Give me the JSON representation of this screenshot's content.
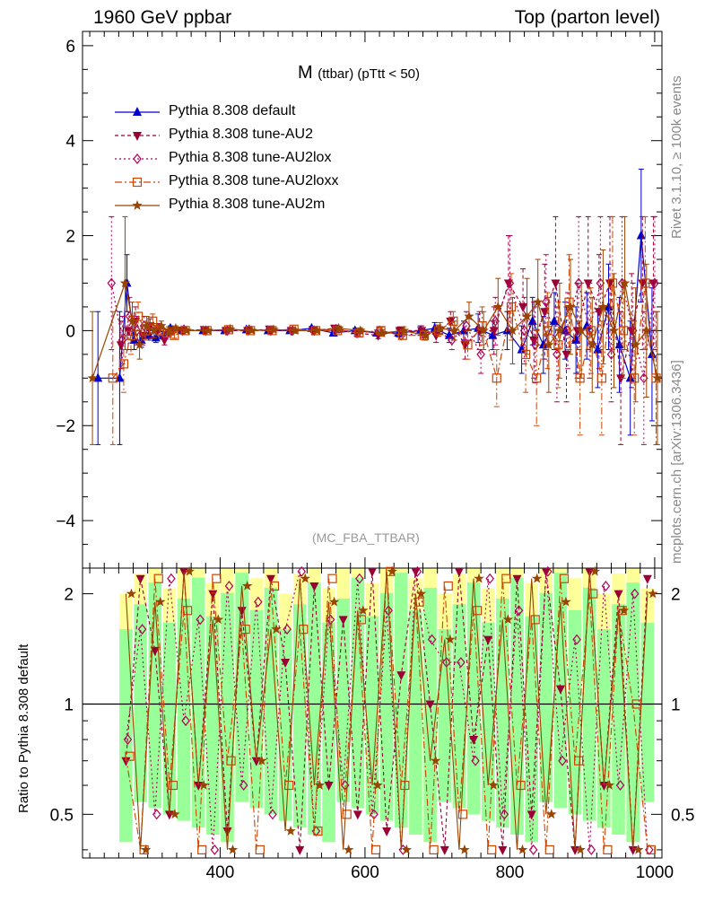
{
  "header": {
    "left": "1960 GeV ppbar",
    "right": "Top (parton level)"
  },
  "side_labels": {
    "rivet": "Rivet 3.1.10, ≥ 100k events",
    "source": "mcplots.cern.ch [arXiv:1306.3436]"
  },
  "plot_title": {
    "main": "M",
    "sub": "(ttbar) (pTtt < 50)"
  },
  "watermark": "(MC_FBA_TTBAR)",
  "ratio_ylabel": "Ratio to Pythia 8.308 default",
  "legend": [
    {
      "label": "Pythia 8.308 default",
      "color": "#0000cc",
      "marker": "triangle-up",
      "dash": ""
    },
    {
      "label": "Pythia 8.308 tune-AU2",
      "color": "#990033",
      "marker": "triangle-down",
      "dash": "4,3"
    },
    {
      "label": "Pythia 8.308 tune-AU2lox",
      "color": "#b0005a",
      "marker": "diamond-open",
      "dash": "2,3"
    },
    {
      "label": "Pythia 8.308 tune-AU2loxx",
      "color": "#cc4400",
      "marker": "square-open",
      "dash": "8,3,2,3"
    },
    {
      "label": "Pythia 8.308 tune-AU2m",
      "color": "#994400",
      "marker": "star",
      "dash": ""
    }
  ],
  "chart_data": {
    "type": "line",
    "main_panel": {
      "xlim": [
        210,
        1010
      ],
      "ylim": [
        -5.0,
        6.3
      ],
      "yticks": [
        -4,
        -2,
        0,
        2,
        4,
        6
      ],
      "yticklabels": [
        "−4",
        "−2",
        "0",
        "2",
        "4",
        "6"
      ],
      "x": [
        220,
        235,
        250,
        265,
        275,
        285,
        295,
        305,
        315,
        325,
        335,
        350,
        380,
        410,
        440,
        470,
        500,
        530,
        560,
        590,
        620,
        650,
        680,
        700,
        720,
        740,
        760,
        780,
        800,
        820,
        835,
        850,
        865,
        880,
        895,
        910,
        925,
        940,
        955,
        970,
        985,
        1000
      ],
      "series": [
        {
          "name": "Pythia 8.308 default",
          "y": [
            null,
            -1.0,
            null,
            -1.0,
            1.0,
            -0.2,
            -0.2,
            -0.1,
            -0.15,
            -0.1,
            0.05,
            0.0,
            0.0,
            0.0,
            0.02,
            0.0,
            0.0,
            0.05,
            -0.05,
            0.0,
            -0.05,
            -0.05,
            0.0,
            0.05,
            -0.1,
            0.0,
            0.05,
            -0.1,
            0.0,
            -0.4,
            0.2,
            -0.3,
            0.2,
            0.0,
            -0.2,
            0.1,
            -0.4,
            0.5,
            -0.3,
            -1.0,
            2.0,
            -0.5
          ],
          "err": [
            0,
            1.4,
            0,
            1.4,
            0.6,
            0.2,
            0.15,
            0.1,
            0.1,
            0.08,
            0.05,
            0.04,
            0.03,
            0.03,
            0.03,
            0.03,
            0.03,
            0.04,
            0.05,
            0.05,
            0.06,
            0.08,
            0.1,
            0.12,
            0.15,
            0.2,
            0.3,
            0.3,
            0.4,
            0.5,
            0.5,
            0.6,
            0.6,
            0.6,
            0.7,
            0.7,
            0.8,
            0.9,
            1.0,
            1.2,
            1.4,
            1.4
          ]
        },
        {
          "name": "Pythia 8.308 tune-AU2",
          "y": [
            null,
            null,
            null,
            -0.3,
            0.0,
            0.2,
            -0.1,
            0.1,
            0.0,
            -0.2,
            0.0,
            0.0,
            0.02,
            0.0,
            0.0,
            0.03,
            0.0,
            0.0,
            0.05,
            -0.05,
            -0.1,
            0.0,
            0.0,
            -0.1,
            0.2,
            -0.3,
            0.0,
            0.0,
            1.0,
            0.5,
            -0.2,
            0.4,
            1.0,
            -0.5,
            0.0,
            1.0,
            0.4,
            1.0,
            -1.0,
            0.0,
            1.0,
            1.0
          ],
          "err": [
            0,
            0,
            0,
            0.5,
            0.4,
            0.3,
            0.2,
            0.15,
            0.1,
            0.1,
            0.05,
            0.04,
            0.03,
            0.03,
            0.03,
            0.03,
            0.03,
            0.04,
            0.05,
            0.06,
            0.07,
            0.08,
            0.1,
            0.15,
            0.2,
            0.3,
            0.4,
            0.5,
            1.0,
            0.8,
            0.8,
            1.0,
            1.4,
            1.0,
            1.0,
            1.4,
            1.2,
            1.4,
            1.4,
            1.2,
            1.4,
            1.4
          ]
        },
        {
          "name": "Pythia 8.308 tune-AU2lox",
          "y": [
            null,
            null,
            1.0,
            -0.2,
            0.3,
            0.0,
            0.1,
            0.0,
            0.05,
            -0.1,
            0.0,
            0.02,
            0.0,
            0.0,
            0.02,
            0.0,
            0.0,
            0.0,
            0.03,
            -0.05,
            0.0,
            -0.1,
            -0.05,
            0.0,
            -0.2,
            0.1,
            -0.5,
            0.2,
            1.0,
            0.0,
            -0.3,
            0.6,
            -0.5,
            0.0,
            1.0,
            0.0,
            1.0,
            -0.5,
            1.0,
            0.0,
            -1.0,
            1.0
          ],
          "err": [
            0,
            0,
            1.4,
            0.5,
            0.4,
            0.3,
            0.2,
            0.15,
            0.1,
            0.08,
            0.05,
            0.04,
            0.03,
            0.03,
            0.03,
            0.03,
            0.03,
            0.04,
            0.05,
            0.06,
            0.07,
            0.08,
            0.1,
            0.12,
            0.2,
            0.3,
            0.4,
            0.5,
            1.0,
            0.7,
            0.8,
            1.0,
            1.0,
            0.8,
            1.4,
            1.0,
            1.4,
            1.0,
            1.4,
            1.0,
            1.4,
            1.4
          ]
        },
        {
          "name": "Pythia 8.308 tune-AU2loxx",
          "y": [
            null,
            null,
            -1.0,
            -0.7,
            -0.1,
            0.3,
            0.0,
            0.2,
            0.0,
            -0.05,
            -0.1,
            0.0,
            0.0,
            0.02,
            0.0,
            0.0,
            0.03,
            0.0,
            0.0,
            -0.05,
            0.0,
            -0.1,
            -0.1,
            0.0,
            0.2,
            -0.3,
            0.1,
            -1.0,
            0.5,
            -0.5,
            -1.0,
            0.0,
            -0.3,
            0.6,
            -1.0,
            0.0,
            -1.0,
            1.0,
            0.0,
            -1.0,
            1.0,
            -1.0
          ],
          "err": [
            0,
            0,
            1.4,
            0.6,
            0.4,
            0.3,
            0.2,
            0.15,
            0.1,
            0.08,
            0.06,
            0.04,
            0.03,
            0.03,
            0.03,
            0.03,
            0.03,
            0.04,
            0.05,
            0.06,
            0.07,
            0.08,
            0.1,
            0.12,
            0.2,
            0.3,
            0.4,
            0.6,
            0.7,
            0.8,
            1.0,
            0.8,
            0.9,
            1.0,
            1.2,
            0.9,
            1.2,
            1.4,
            1.0,
            1.2,
            1.4,
            1.4
          ]
        },
        {
          "name": "Pythia 8.308 tune-AU2m",
          "y": [
            -1.0,
            null,
            null,
            1.0,
            0.2,
            -0.3,
            0.1,
            0.0,
            0.1,
            0.0,
            0.05,
            0.0,
            0.0,
            0.03,
            0.0,
            0.02,
            0.0,
            0.0,
            0.05,
            0.0,
            -0.05,
            0.0,
            -0.1,
            0.05,
            0.0,
            0.3,
            0.0,
            0.5,
            0.0,
            0.3,
            0.6,
            -0.3,
            0.0,
            0.5,
            0.0,
            -0.3,
            0.5,
            0.0,
            1.0,
            -0.3,
            0.0,
            -1.0
          ],
          "err": [
            1.4,
            0,
            0,
            1.4,
            0.4,
            0.3,
            0.2,
            0.15,
            0.1,
            0.08,
            0.05,
            0.04,
            0.03,
            0.03,
            0.03,
            0.03,
            0.03,
            0.04,
            0.05,
            0.06,
            0.07,
            0.08,
            0.1,
            0.12,
            0.2,
            0.3,
            0.4,
            0.6,
            0.7,
            0.8,
            0.9,
            1.0,
            1.0,
            1.0,
            1.0,
            1.0,
            1.2,
            1.2,
            1.4,
            1.2,
            1.4,
            1.4
          ]
        }
      ]
    },
    "ratio_panel": {
      "ylim": [
        0.38,
        2.35
      ],
      "log_y": true,
      "yticks": [
        0.5,
        1,
        2
      ],
      "yticklabels": [
        "0.5",
        "1",
        "2"
      ],
      "xticks": [
        400,
        600,
        800,
        1000
      ],
      "xticklabels": [
        "400",
        "600",
        "800",
        "1000"
      ],
      "reference": 1.0,
      "x": [
        270,
        290,
        310,
        330,
        350,
        370,
        390,
        410,
        430,
        450,
        470,
        490,
        510,
        530,
        550,
        570,
        590,
        610,
        630,
        650,
        670,
        690,
        710,
        730,
        750,
        770,
        790,
        810,
        830,
        850,
        870,
        890,
        910,
        930,
        950,
        970,
        990
      ],
      "series": [
        {
          "name": "Pythia 8.308 tune-AU2",
          "y": [
            0.7,
            2.2,
            1.4,
            0.5,
            2.3,
            0.6,
            2.0,
            0.45,
            1.8,
            0.7,
            2.2,
            1.3,
            0.4,
            2.1,
            0.6,
            1.7,
            0.5,
            2.3,
            0.45,
            1.2,
            2.3,
            1.0,
            0.4,
            2.3,
            0.8,
            1.5,
            0.4,
            2.2,
            0.5,
            2.3,
            1.1,
            0.4,
            2.3,
            0.6,
            2.0,
            0.4,
            2.2
          ]
        },
        {
          "name": "Pythia 8.308 tune-AU2lox",
          "y": [
            0.8,
            1.6,
            0.5,
            2.2,
            0.9,
            1.7,
            0.4,
            2.1,
            0.6,
            1.9,
            0.5,
            1.6,
            2.3,
            0.45,
            1.7,
            0.6,
            2.2,
            0.5,
            1.8,
            0.4,
            2.3,
            1.5,
            1.3,
            1.3,
            0.7,
            2.2,
            0.5,
            1.8,
            0.4,
            2.3,
            0.7,
            1.5,
            0.4,
            2.1,
            0.6,
            2.0,
            0.4
          ]
        },
        {
          "name": "Pythia 8.308 tune-AU2loxx",
          "y": [
            0.72,
            0.4,
            2.2,
            0.6,
            1.8,
            0.4,
            2.2,
            0.7,
            1.6,
            0.4,
            2.1,
            0.6,
            1.6,
            0.45,
            2.2,
            0.5,
            1.7,
            0.4,
            2.3,
            0.6,
            1.9,
            0.4,
            2.1,
            0.5,
            1.8,
            0.4,
            2.2,
            0.6,
            1.7,
            0.4,
            2.2,
            0.7,
            2.0,
            0.4,
            1.8,
            1.0,
            0.4
          ]
        },
        {
          "name": "Pythia 8.308 tune-AU2m",
          "y": [
            2.0,
            0.4,
            1.9,
            0.5,
            2.3,
            0.6,
            1.7,
            0.4,
            2.1,
            0.7,
            1.6,
            0.45,
            2.2,
            0.6,
            1.9,
            0.4,
            1.8,
            0.6,
            2.3,
            0.4,
            2.0,
            0.7,
            1.5,
            0.4,
            2.2,
            0.6,
            1.7,
            0.4,
            2.2,
            0.5,
            1.9,
            0.4,
            2.3,
            0.6,
            1.8,
            0.4,
            2.0
          ]
        }
      ]
    }
  }
}
